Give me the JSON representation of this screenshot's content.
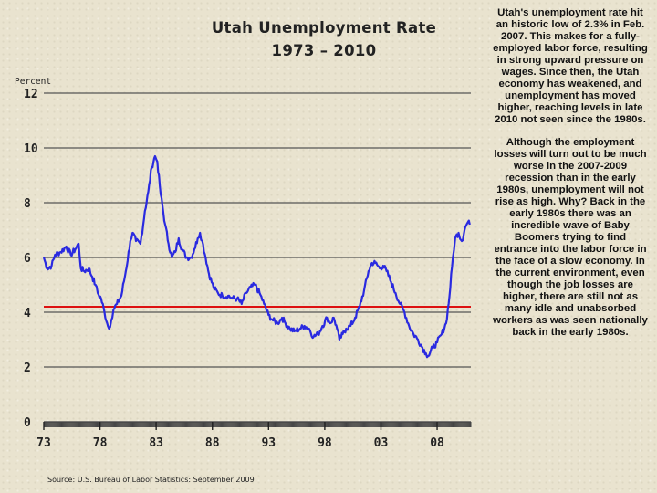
{
  "chart_data": {
    "type": "line",
    "title_line1": "Utah Unemployment Rate",
    "title_line2": "1973 – 2010",
    "ylabel": "Percent",
    "ylim": [
      0,
      12
    ],
    "yticks": [
      "0",
      "2",
      "4",
      "6",
      "8",
      "10",
      "12"
    ],
    "xlim": [
      1973,
      2011
    ],
    "xticks": [
      {
        "label": "73",
        "year": 1973
      },
      {
        "label": "78",
        "year": 1978
      },
      {
        "label": "83",
        "year": 1983
      },
      {
        "label": "88",
        "year": 1988
      },
      {
        "label": "93",
        "year": 1993
      },
      {
        "label": "98",
        "year": 1998
      },
      {
        "label": "03",
        "year": 2003
      },
      {
        "label": "08",
        "year": 2008
      }
    ],
    "reference_line": {
      "value": 4.2,
      "color": "#dd1111"
    },
    "series": [
      {
        "name": "Utah unemployment rate",
        "color": "#2a2ae0",
        "points": [
          [
            1973.0,
            6.0
          ],
          [
            1973.3,
            5.6
          ],
          [
            1973.7,
            5.7
          ],
          [
            1974.0,
            6.1
          ],
          [
            1974.5,
            6.2
          ],
          [
            1975.0,
            6.4
          ],
          [
            1975.4,
            6.1
          ],
          [
            1975.8,
            6.3
          ],
          [
            1976.1,
            6.5
          ],
          [
            1976.3,
            5.6
          ],
          [
            1976.6,
            5.5
          ],
          [
            1977.0,
            5.6
          ],
          [
            1977.3,
            5.3
          ],
          [
            1977.6,
            5.0
          ],
          [
            1977.8,
            4.7
          ],
          [
            1978.1,
            4.5
          ],
          [
            1978.4,
            4.0
          ],
          [
            1978.7,
            3.5
          ],
          [
            1978.8,
            3.4
          ],
          [
            1979.0,
            3.7
          ],
          [
            1979.2,
            4.1
          ],
          [
            1979.5,
            4.3
          ],
          [
            1979.9,
            4.6
          ],
          [
            1980.3,
            5.5
          ],
          [
            1980.7,
            6.6
          ],
          [
            1980.9,
            6.9
          ],
          [
            1981.2,
            6.6
          ],
          [
            1981.6,
            6.5
          ],
          [
            1982.0,
            7.7
          ],
          [
            1982.3,
            8.4
          ],
          [
            1982.6,
            9.3
          ],
          [
            1982.9,
            9.7
          ],
          [
            1983.1,
            9.5
          ],
          [
            1983.4,
            8.3
          ],
          [
            1983.8,
            7.2
          ],
          [
            1984.1,
            6.5
          ],
          [
            1984.4,
            6.0
          ],
          [
            1984.7,
            6.2
          ],
          [
            1985.0,
            6.7
          ],
          [
            1985.3,
            6.3
          ],
          [
            1985.7,
            6.0
          ],
          [
            1986.1,
            6.0
          ],
          [
            1986.4,
            6.3
          ],
          [
            1986.7,
            6.7
          ],
          [
            1986.9,
            6.9
          ],
          [
            1987.1,
            6.6
          ],
          [
            1987.4,
            6.0
          ],
          [
            1987.7,
            5.4
          ],
          [
            1988.1,
            4.9
          ],
          [
            1988.5,
            4.7
          ],
          [
            1988.9,
            4.6
          ],
          [
            1989.4,
            4.6
          ],
          [
            1989.8,
            4.5
          ],
          [
            1990.2,
            4.5
          ],
          [
            1990.6,
            4.3
          ],
          [
            1991.0,
            4.7
          ],
          [
            1991.4,
            4.9
          ],
          [
            1991.8,
            5.0
          ],
          [
            1992.2,
            4.7
          ],
          [
            1992.6,
            4.3
          ],
          [
            1993.0,
            3.9
          ],
          [
            1993.4,
            3.7
          ],
          [
            1993.8,
            3.6
          ],
          [
            1994.2,
            3.8
          ],
          [
            1994.5,
            3.6
          ],
          [
            1994.9,
            3.4
          ],
          [
            1995.3,
            3.3
          ],
          [
            1995.8,
            3.4
          ],
          [
            1996.2,
            3.5
          ],
          [
            1996.6,
            3.4
          ],
          [
            1997.0,
            3.1
          ],
          [
            1997.4,
            3.2
          ],
          [
            1997.8,
            3.5
          ],
          [
            1998.2,
            3.8
          ],
          [
            1998.5,
            3.6
          ],
          [
            1998.8,
            3.8
          ],
          [
            1999.1,
            3.4
          ],
          [
            1999.3,
            3.0
          ],
          [
            1999.6,
            3.2
          ],
          [
            1999.9,
            3.4
          ],
          [
            2000.3,
            3.5
          ],
          [
            2000.7,
            3.8
          ],
          [
            2001.1,
            4.2
          ],
          [
            2001.5,
            4.8
          ],
          [
            2001.9,
            5.5
          ],
          [
            2002.2,
            5.8
          ],
          [
            2002.5,
            5.8
          ],
          [
            2002.9,
            5.6
          ],
          [
            2003.2,
            5.7
          ],
          [
            2003.5,
            5.5
          ],
          [
            2003.9,
            5.1
          ],
          [
            2004.3,
            4.7
          ],
          [
            2004.7,
            4.3
          ],
          [
            2005.1,
            4.0
          ],
          [
            2005.5,
            3.5
          ],
          [
            2005.9,
            3.2
          ],
          [
            2006.3,
            3.0
          ],
          [
            2006.7,
            2.7
          ],
          [
            2007.0,
            2.5
          ],
          [
            2007.2,
            2.4
          ],
          [
            2007.6,
            2.7
          ],
          [
            2008.0,
            2.9
          ],
          [
            2008.4,
            3.2
          ],
          [
            2008.8,
            3.6
          ],
          [
            2009.1,
            4.6
          ],
          [
            2009.4,
            6.0
          ],
          [
            2009.6,
            6.7
          ],
          [
            2009.9,
            6.9
          ],
          [
            2010.2,
            6.6
          ],
          [
            2010.5,
            7.1
          ],
          [
            2010.75,
            7.3
          ],
          [
            2010.9,
            7.2
          ]
        ]
      }
    ]
  },
  "source": "Source: U.S. Bureau of Labor Statistics: September 2009",
  "notes": {
    "paragraph1": "Utah's unemployment rate hit an historic low of 2.3% in Feb. 2007. This makes for a fully-employed labor force, resulting in strong upward pressure on wages. Since then, the Utah economy has weakened, and unemployment has moved higher, reaching levels in late 2010 not seen since the 1980s.",
    "paragraph2": "Although the employment losses will turn out to be much worse in the 2007-2009 recession than in the early 1980s, unemployment will not rise as high. Why? Back in the early 1980s there was an incredible wave of Baby Boomers trying to find entrance into the labor force in the face of a slow economy. In the current environment, even though the job losses are higher, there are still not as many idle and unabsorbed workers as was seen nationally back in the early 1980s."
  }
}
